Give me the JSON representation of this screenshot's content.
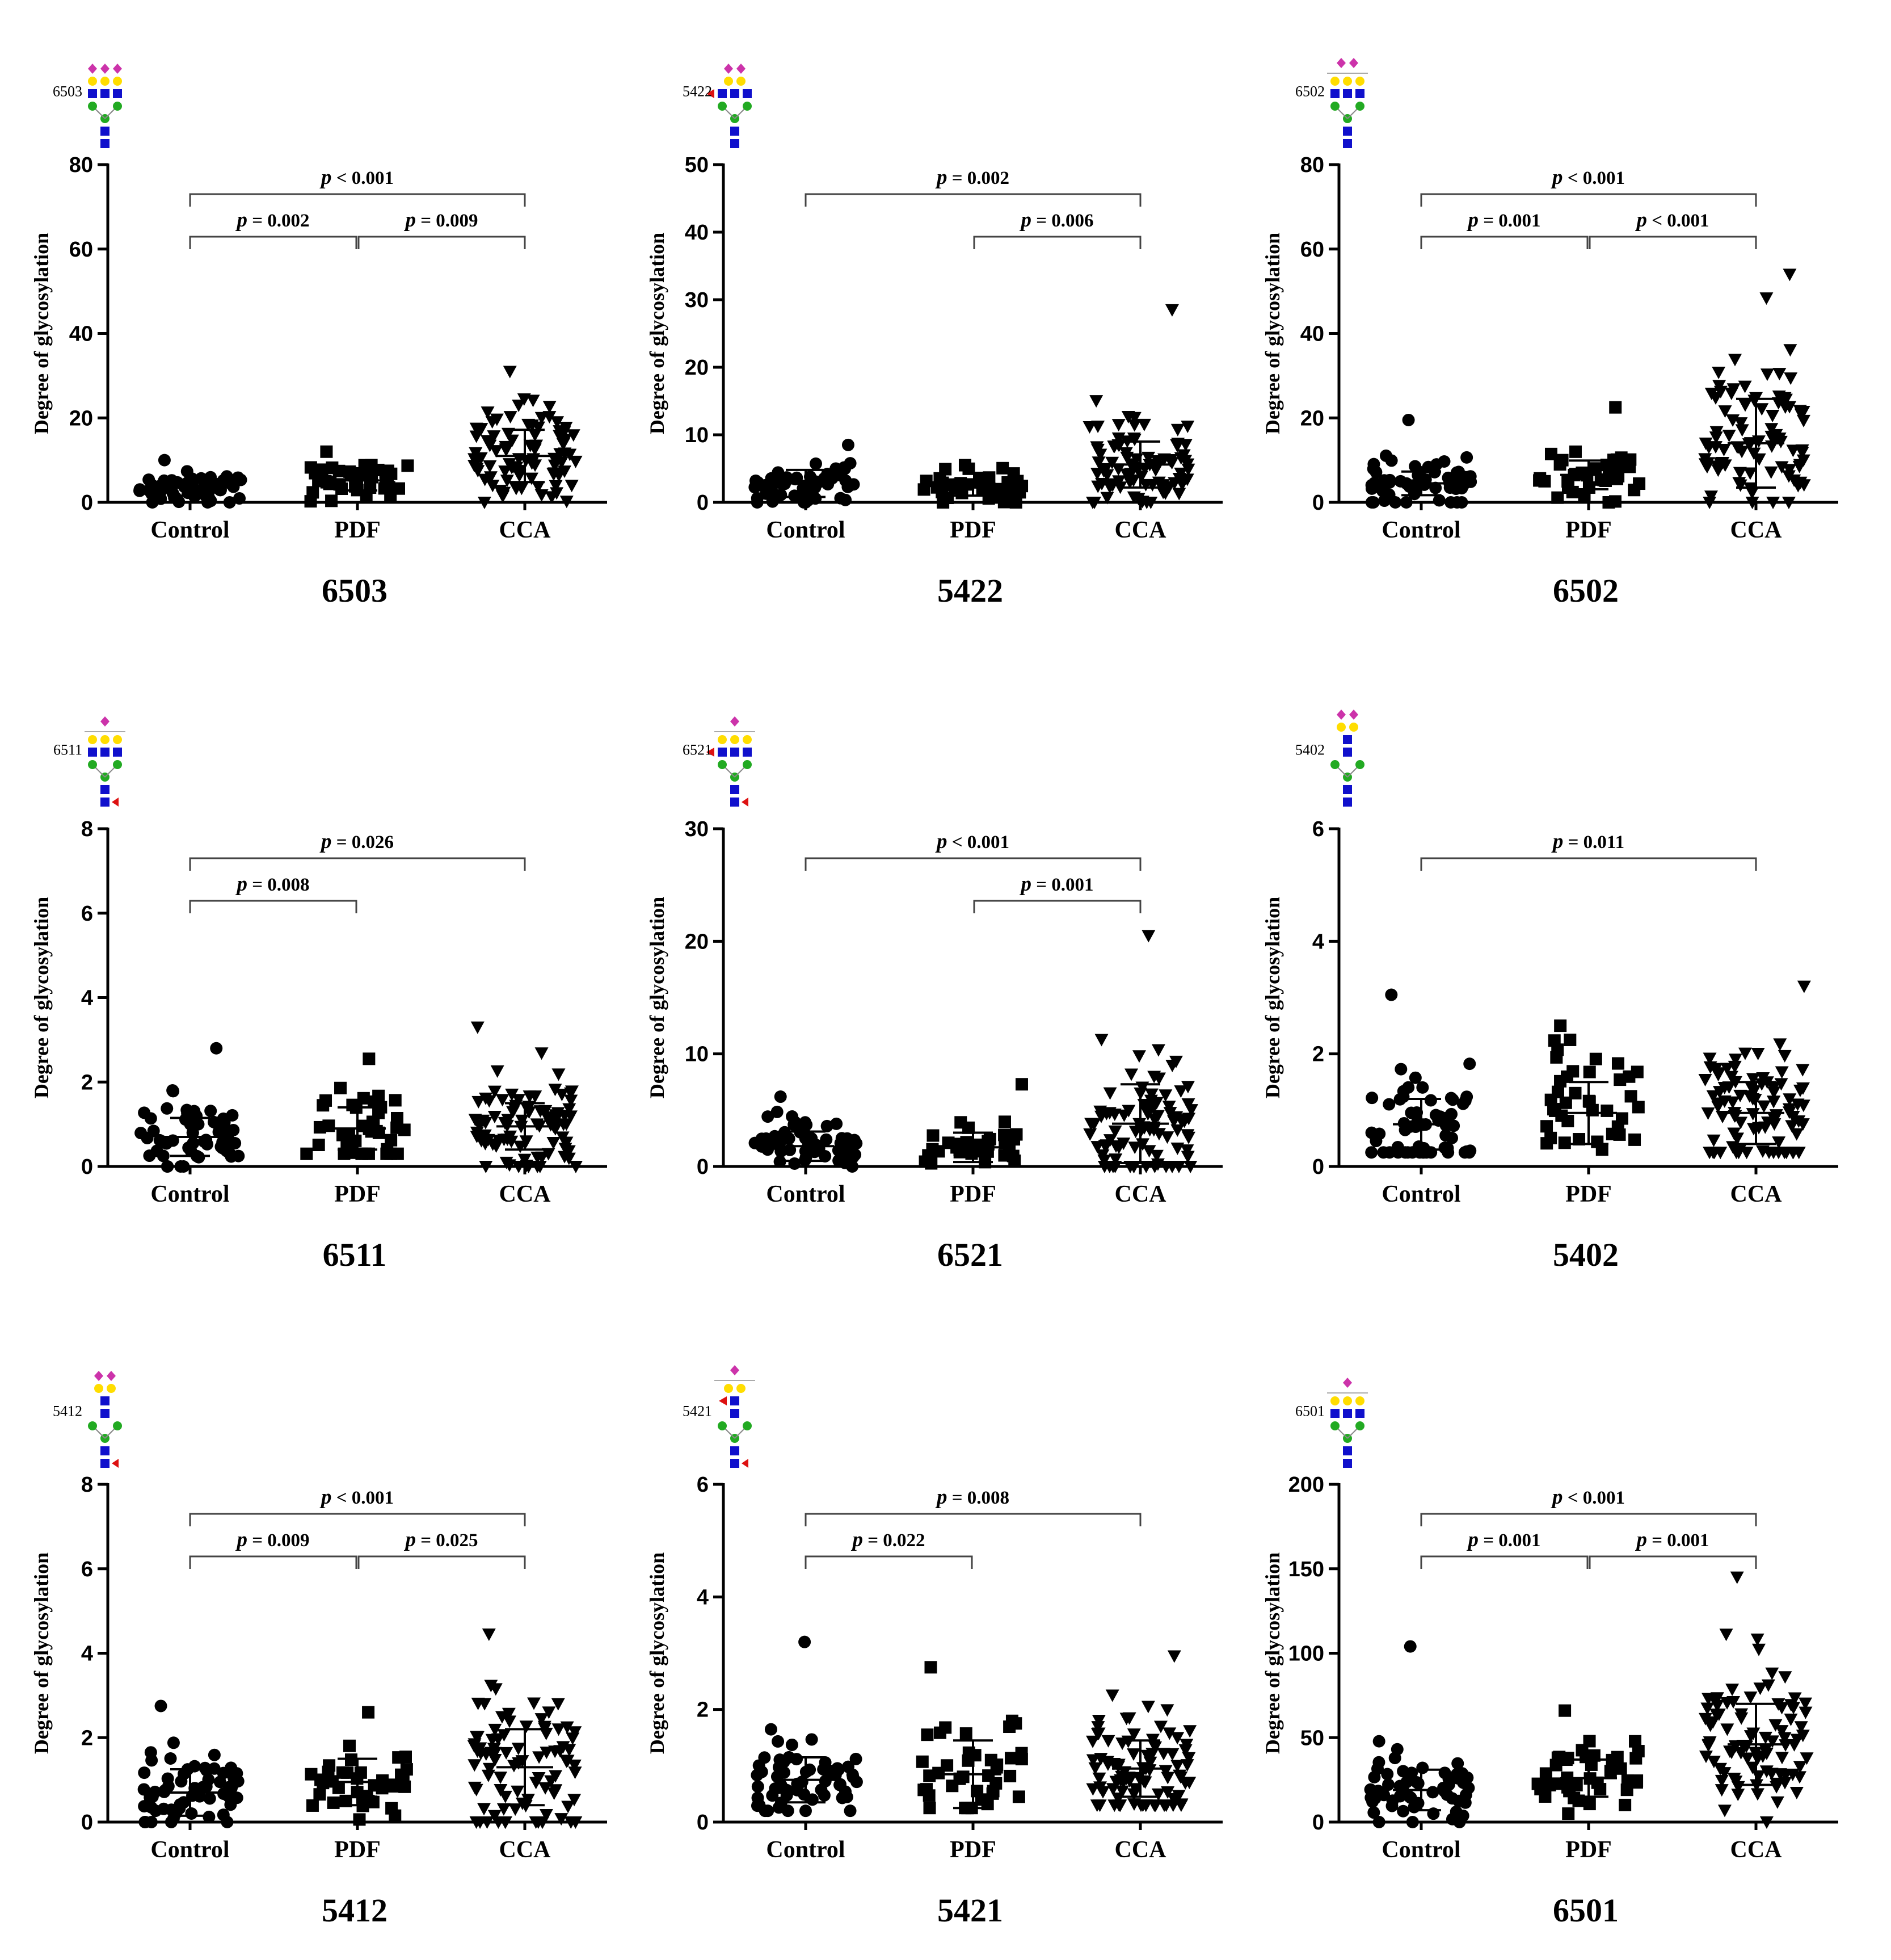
{
  "figure": {
    "ylabel": "Degree of glycosylation"
  },
  "chart_data": [
    {
      "type": "scatter",
      "title": "6503",
      "glycan_code": "6503",
      "glycan": {
        "sialic": 3,
        "gal": 3,
        "branchGlcNAc": 3,
        "coreFucose": false,
        "antennaFucose": false,
        "bar": false
      },
      "categories": [
        "Control",
        "PDF",
        "CCA"
      ],
      "ylim": [
        0,
        80
      ],
      "yticks": [
        0,
        20,
        40,
        60,
        80
      ],
      "series": [
        {
          "name": "Control",
          "marker": "circle",
          "n": 60,
          "mean": 3.5,
          "sd": 1.9,
          "min": 0,
          "max": 10
        },
        {
          "name": "PDF",
          "marker": "square",
          "n": 40,
          "mean": 5.2,
          "sd": 2.4,
          "min": 0,
          "max": 12
        },
        {
          "name": "CCA",
          "marker": "triangle",
          "n": 90,
          "mean": 11,
          "sd": 6.2,
          "min": 0,
          "max": 31
        }
      ],
      "comparisons": [
        {
          "from": "Control",
          "to": "CCA",
          "label": "p < 0.001",
          "p": "p",
          "rest": " < 0.001"
        },
        {
          "from": "Control",
          "to": "PDF",
          "label": "p = 0.002",
          "p": "p",
          "rest": " = 0.002"
        },
        {
          "from": "PDF",
          "to": "CCA",
          "label": "p = 0.009",
          "p": "p",
          "rest": " = 0.009"
        }
      ]
    },
    {
      "type": "scatter",
      "title": "5422",
      "glycan_code": "5422",
      "glycan": {
        "sialic": 2,
        "gal": 2,
        "branchGlcNAc": 3,
        "coreFucose": false,
        "antennaFucose": true,
        "bar": false
      },
      "categories": [
        "Control",
        "PDF",
        "CCA"
      ],
      "ylim": [
        0,
        50
      ],
      "yticks": [
        0,
        10,
        20,
        30,
        40,
        50
      ],
      "series": [
        {
          "name": "Control",
          "marker": "circle",
          "n": 60,
          "mean": 2.8,
          "sd": 2.0,
          "min": 0,
          "max": 8.5
        },
        {
          "name": "PDF",
          "marker": "square",
          "n": 40,
          "mean": 2.2,
          "sd": 1.2,
          "min": 0,
          "max": 5.5
        },
        {
          "name": "CCA",
          "marker": "triangle",
          "n": 90,
          "mean": 5.6,
          "sd": 3.4,
          "min": 0,
          "max": 28.5
        }
      ],
      "comparisons": [
        {
          "from": "Control",
          "to": "CCA",
          "label": "p = 0.002",
          "p": "p",
          "rest": " = 0.002"
        },
        {
          "from": "PDF",
          "to": "CCA",
          "label": "p = 0.006",
          "p": "p",
          "rest": " = 0.006"
        }
      ]
    },
    {
      "type": "scatter",
      "title": "6502",
      "glycan_code": "6502",
      "glycan": {
        "sialic": 2,
        "gal": 3,
        "branchGlcNAc": 3,
        "coreFucose": false,
        "antennaFucose": false,
        "bar": true
      },
      "categories": [
        "Control",
        "PDF",
        "CCA"
      ],
      "ylim": [
        0,
        80
      ],
      "yticks": [
        0,
        20,
        40,
        60,
        80
      ],
      "series": [
        {
          "name": "Control",
          "marker": "circle",
          "n": 60,
          "mean": 4.5,
          "sd": 2.8,
          "min": 0,
          "max": 19.5
        },
        {
          "name": "PDF",
          "marker": "square",
          "n": 40,
          "mean": 6.5,
          "sd": 3.4,
          "min": 0,
          "max": 22.5
        },
        {
          "name": "CCA",
          "marker": "triangle",
          "n": 90,
          "mean": 14,
          "sd": 10.5,
          "min": 0,
          "max": 54
        }
      ],
      "comparisons": [
        {
          "from": "Control",
          "to": "CCA",
          "label": "p < 0.001",
          "p": "p",
          "rest": " < 0.001"
        },
        {
          "from": "Control",
          "to": "PDF",
          "label": "p = 0.001",
          "p": "p",
          "rest": " = 0.001"
        },
        {
          "from": "PDF",
          "to": "CCA",
          "label": "p < 0.001",
          "p": "p",
          "rest": " < 0.001"
        }
      ]
    },
    {
      "type": "scatter",
      "title": "6511",
      "glycan_code": "6511",
      "glycan": {
        "sialic": 1,
        "gal": 3,
        "branchGlcNAc": 3,
        "coreFucose": true,
        "antennaFucose": false,
        "bar": true
      },
      "categories": [
        "Control",
        "PDF",
        "CCA"
      ],
      "ylim": [
        0,
        8
      ],
      "yticks": [
        0,
        2,
        4,
        6,
        8
      ],
      "series": [
        {
          "name": "Control",
          "marker": "circle",
          "n": 60,
          "mean": 0.7,
          "sd": 0.45,
          "min": 0,
          "max": 2.8
        },
        {
          "name": "PDF",
          "marker": "square",
          "n": 40,
          "mean": 0.9,
          "sd": 0.5,
          "min": 0.3,
          "max": 2.55
        },
        {
          "name": "CCA",
          "marker": "triangle",
          "n": 90,
          "mean": 0.95,
          "sd": 0.55,
          "min": 0,
          "max": 3.3
        }
      ],
      "comparisons": [
        {
          "from": "Control",
          "to": "CCA",
          "label": "p = 0.026",
          "p": "p",
          "rest": " = 0.026"
        },
        {
          "from": "Control",
          "to": "PDF",
          "label": "p = 0.008",
          "p": "p",
          "rest": " = 0.008"
        }
      ]
    },
    {
      "type": "scatter",
      "title": "6521",
      "glycan_code": "6521",
      "glycan": {
        "sialic": 1,
        "gal": 3,
        "branchGlcNAc": 3,
        "coreFucose": true,
        "antennaFucose": true,
        "bar": true
      },
      "categories": [
        "Control",
        "PDF",
        "CCA"
      ],
      "ylim": [
        0,
        30
      ],
      "yticks": [
        0,
        10,
        20,
        30
      ],
      "series": [
        {
          "name": "Control",
          "marker": "circle",
          "n": 60,
          "mean": 1.8,
          "sd": 1.3,
          "min": 0,
          "max": 6.2
        },
        {
          "name": "PDF",
          "marker": "square",
          "n": 40,
          "mean": 1.7,
          "sd": 1.3,
          "min": 0,
          "max": 7.3
        },
        {
          "name": "CCA",
          "marker": "triangle",
          "n": 90,
          "mean": 3.8,
          "sd": 3.5,
          "min": 0,
          "max": 20.5
        }
      ],
      "comparisons": [
        {
          "from": "Control",
          "to": "CCA",
          "label": "p < 0.001",
          "p": "p",
          "rest": " < 0.001"
        },
        {
          "from": "PDF",
          "to": "CCA",
          "label": "p = 0.001",
          "p": "p",
          "rest": " = 0.001"
        }
      ]
    },
    {
      "type": "scatter",
      "title": "5402",
      "glycan_code": "5402",
      "glycan": {
        "sialic": 2,
        "gal": 2,
        "branchGlcNAc": 2,
        "coreFucose": false,
        "antennaFucose": false,
        "bar": false
      },
      "categories": [
        "Control",
        "PDF",
        "CCA"
      ],
      "ylim": [
        0,
        6
      ],
      "yticks": [
        0,
        2,
        4,
        6
      ],
      "series": [
        {
          "name": "Control",
          "marker": "circle",
          "n": 60,
          "mean": 0.75,
          "sd": 0.45,
          "min": 0.25,
          "max": 3.05
        },
        {
          "name": "PDF",
          "marker": "square",
          "n": 40,
          "mean": 0.95,
          "sd": 0.55,
          "min": 0.3,
          "max": 2.5
        },
        {
          "name": "CCA",
          "marker": "triangle",
          "n": 90,
          "mean": 0.95,
          "sd": 0.55,
          "min": 0.25,
          "max": 3.2
        }
      ],
      "comparisons": [
        {
          "from": "Control",
          "to": "CCA",
          "label": "p = 0.011",
          "p": "p",
          "rest": " = 0.011"
        }
      ]
    },
    {
      "type": "scatter",
      "title": "5412",
      "glycan_code": "5412",
      "glycan": {
        "sialic": 2,
        "gal": 2,
        "branchGlcNAc": 2,
        "coreFucose": true,
        "antennaFucose": false,
        "bar": false
      },
      "categories": [
        "Control",
        "PDF",
        "CCA"
      ],
      "ylim": [
        0,
        8
      ],
      "yticks": [
        0,
        2,
        4,
        6,
        8
      ],
      "series": [
        {
          "name": "Control",
          "marker": "circle",
          "n": 60,
          "mean": 0.7,
          "sd": 0.55,
          "min": 0,
          "max": 2.75
        },
        {
          "name": "PDF",
          "marker": "square",
          "n": 40,
          "mean": 0.95,
          "sd": 0.55,
          "min": 0,
          "max": 2.6
        },
        {
          "name": "CCA",
          "marker": "triangle",
          "n": 90,
          "mean": 1.3,
          "sd": 0.9,
          "min": 0,
          "max": 4.45
        }
      ],
      "comparisons": [
        {
          "from": "Control",
          "to": "CCA",
          "label": "p < 0.001",
          "p": "p",
          "rest": " < 0.001"
        },
        {
          "from": "Control",
          "to": "PDF",
          "label": "p = 0.009",
          "p": "p",
          "rest": " = 0.009"
        },
        {
          "from": "PDF",
          "to": "CCA",
          "label": "p = 0.025",
          "p": "p",
          "rest": " = 0.025"
        }
      ]
    },
    {
      "type": "scatter",
      "title": "5421",
      "glycan_code": "5421",
      "glycan": {
        "sialic": 1,
        "gal": 2,
        "branchGlcNAc": 2,
        "coreFucose": true,
        "antennaFucose": true,
        "bar": true
      },
      "categories": [
        "Control",
        "PDF",
        "CCA"
      ],
      "ylim": [
        0,
        6
      ],
      "yticks": [
        0,
        2,
        4,
        6
      ],
      "series": [
        {
          "name": "Control",
          "marker": "circle",
          "n": 60,
          "mean": 0.75,
          "sd": 0.4,
          "min": 0.2,
          "max": 3.2
        },
        {
          "name": "PDF",
          "marker": "square",
          "n": 40,
          "mean": 0.85,
          "sd": 0.6,
          "min": 0.25,
          "max": 2.75
        },
        {
          "name": "CCA",
          "marker": "triangle",
          "n": 90,
          "mean": 0.95,
          "sd": 0.5,
          "min": 0.3,
          "max": 2.95
        }
      ],
      "comparisons": [
        {
          "from": "Control",
          "to": "CCA",
          "label": "p = 0.008",
          "p": "p",
          "rest": " = 0.008"
        },
        {
          "from": "Control",
          "to": "PDF",
          "label": "p = 0.022",
          "p": "p",
          "rest": " = 0.022"
        }
      ]
    },
    {
      "type": "scatter",
      "title": "6501",
      "glycan_code": "6501",
      "glycan": {
        "sialic": 1,
        "gal": 3,
        "branchGlcNAc": 3,
        "coreFucose": false,
        "antennaFucose": false,
        "bar": true
      },
      "categories": [
        "Control",
        "PDF",
        "CCA"
      ],
      "ylim": [
        0,
        200
      ],
      "yticks": [
        0,
        50,
        100,
        150,
        200
      ],
      "series": [
        {
          "name": "Control",
          "marker": "circle",
          "n": 60,
          "mean": 19,
          "sd": 12,
          "min": 0,
          "max": 104
        },
        {
          "name": "PDF",
          "marker": "square",
          "n": 40,
          "mean": 26,
          "sd": 11,
          "min": 5,
          "max": 66
        },
        {
          "name": "CCA",
          "marker": "triangle",
          "n": 90,
          "mean": 46,
          "sd": 24,
          "min": 0,
          "max": 145
        }
      ],
      "comparisons": [
        {
          "from": "Control",
          "to": "CCA",
          "label": "p < 0.001",
          "p": "p",
          "rest": " < 0.001"
        },
        {
          "from": "Control",
          "to": "PDF",
          "label": "p = 0.001",
          "p": "p",
          "rest": " = 0.001"
        },
        {
          "from": "PDF",
          "to": "CCA",
          "label": "p = 0.001",
          "p": "p",
          "rest": " = 0.001"
        }
      ]
    }
  ],
  "colors": {
    "sialic": "#cc33aa",
    "galactose": "#ffdd00",
    "glcnac": "#1010cc",
    "mannose": "#22aa22",
    "fucose": "#dd1111",
    "marker": "#000000",
    "bracket": "#444444"
  }
}
